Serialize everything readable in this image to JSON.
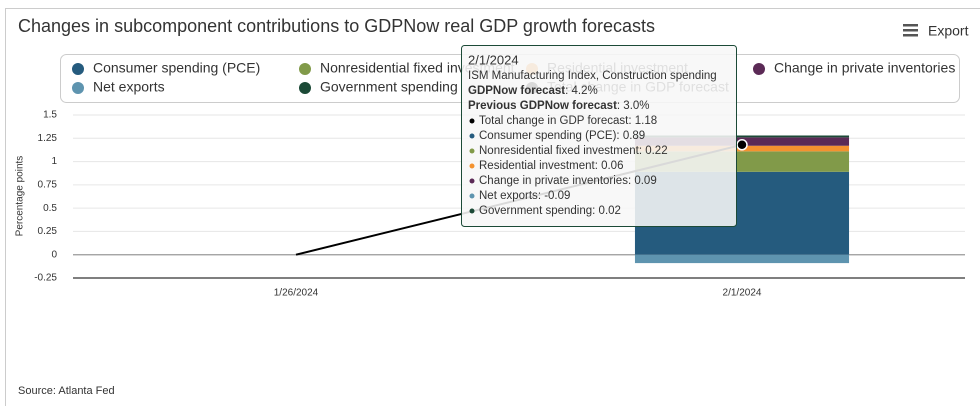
{
  "chart_data": {
    "type": "bar",
    "stacked": true,
    "title": "Changes in subcomponent contributions to GDPNow real GDP growth forecasts",
    "y_axis_label": "Percentage points",
    "categories": [
      "1/26/2024",
      "2/1/2024"
    ],
    "series": [
      {
        "name": "Consumer spending (PCE)",
        "color": "#255b7e",
        "values": [
          null,
          0.89
        ]
      },
      {
        "name": "Nonresidential fixed investment",
        "color": "#819a49",
        "values": [
          null,
          0.22
        ]
      },
      {
        "name": "Residential investment",
        "color": "#f4922f",
        "values": [
          null,
          0.06
        ]
      },
      {
        "name": "Change in private inventories",
        "color": "#5b2a56",
        "values": [
          null,
          0.09
        ]
      },
      {
        "name": "Net exports",
        "color": "#5e94af",
        "values": [
          null,
          -0.09
        ]
      },
      {
        "name": "Government spending",
        "color": "#1c4a37",
        "values": [
          null,
          0.02
        ]
      },
      {
        "name": "Total change in GDP forecast",
        "type": "line",
        "color": "#000000",
        "values": [
          0,
          1.18
        ]
      }
    ],
    "ylim": [
      -0.25,
      1.5
    ],
    "yticks": [
      -0.25,
      0,
      0.25,
      0.5,
      0.75,
      1,
      1.25,
      1.5
    ],
    "grid": true,
    "tooltip": {
      "date": "2/1/2024",
      "subtitle": "ISM Manufacturing Index, Construction spending",
      "forecast_label": "GDPNow forecast",
      "forecast_value": "4.2%",
      "previous_label": "Previous GDPNow forecast",
      "previous_value": "3.0%"
    }
  },
  "export_label": "Export",
  "source": "Source: Atlanta Fed"
}
